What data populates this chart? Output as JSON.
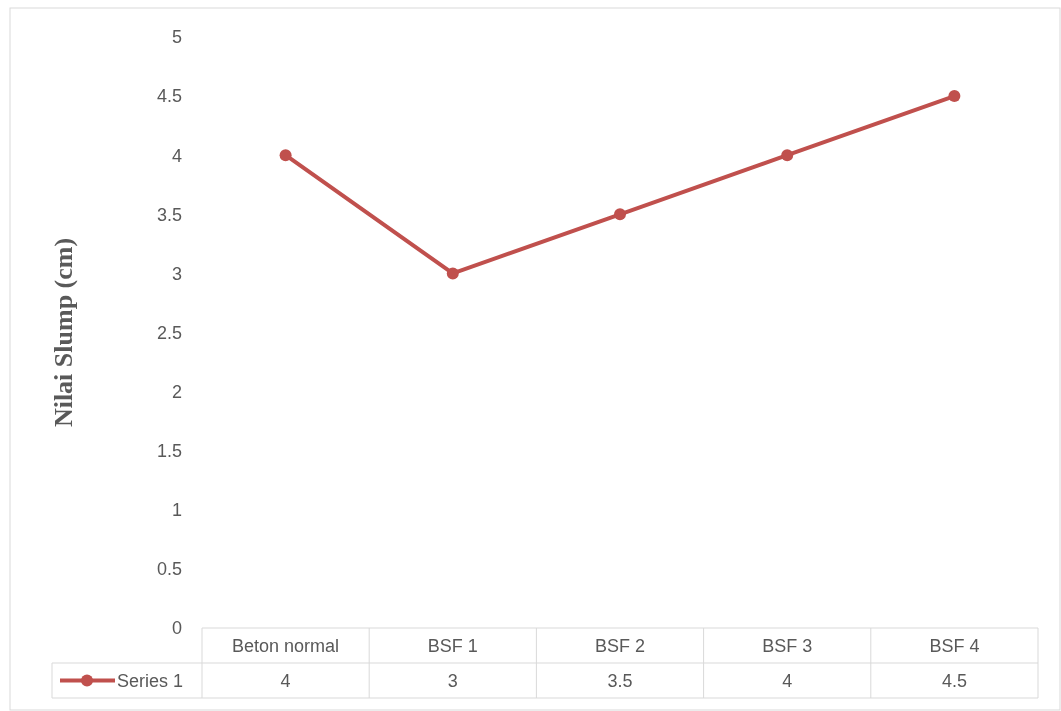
{
  "chart_data": {
    "type": "line",
    "ylabel": "Nilai Slump (cm)",
    "categories": [
      "Beton normal",
      "BSF 1",
      "BSF 2",
      "BSF 3",
      "BSF 4"
    ],
    "series": [
      {
        "name": "Series 1",
        "color": "#c0504d",
        "values": [
          4,
          3,
          3.5,
          4,
          4.5
        ]
      }
    ],
    "ylim": [
      0,
      5
    ],
    "yticks": [
      0,
      0.5,
      1,
      1.5,
      2,
      2.5,
      3,
      3.5,
      4,
      4.5,
      5
    ],
    "grid": false,
    "marker": "circle",
    "line_style": "solid",
    "data_labels": true,
    "legend": "bottom"
  }
}
